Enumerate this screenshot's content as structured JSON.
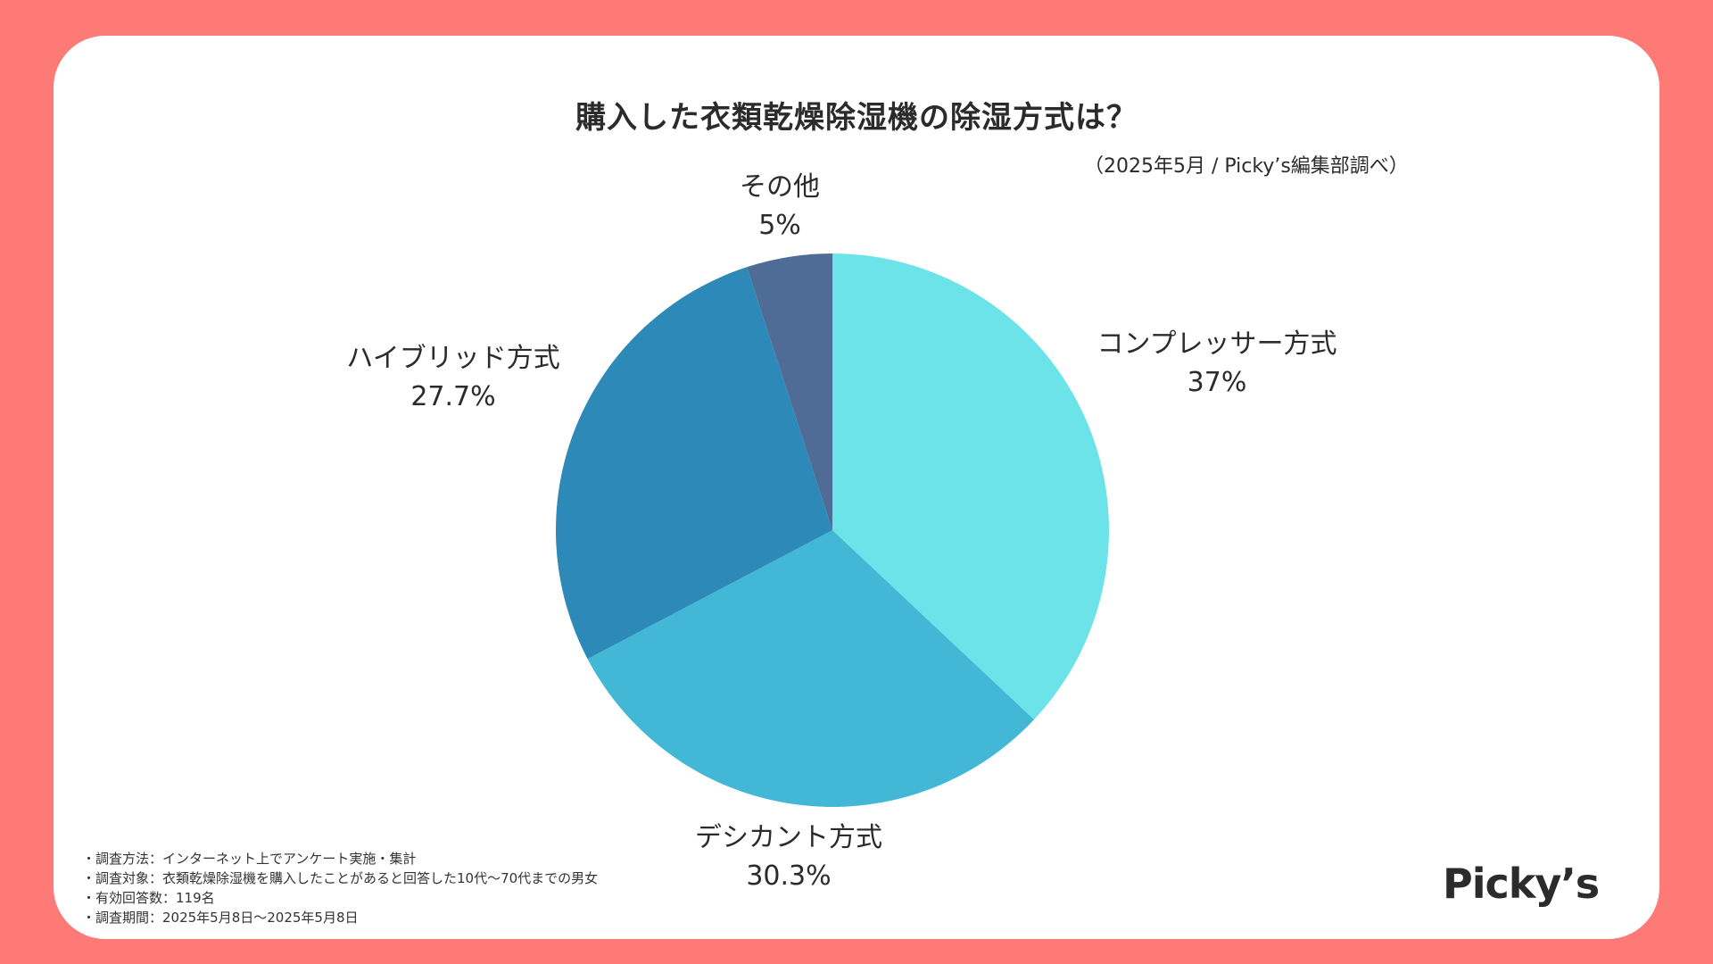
{
  "header": {
    "title": "購入した衣類乾燥除湿機の除湿方式は？",
    "source": "（2025年5月 / Picky’s編集部調べ）"
  },
  "chart_data": {
    "type": "pie",
    "title": "購入した衣類乾燥除湿機の除湿方式は？",
    "slices": [
      {
        "label": "コンプレッサー方式",
        "value": 37,
        "display": "37%",
        "color": "#6ce3e8"
      },
      {
        "label": "デシカント方式",
        "value": 30.3,
        "display": "30.3%",
        "color": "#42b7d6"
      },
      {
        "label": "ハイブリッド方式",
        "value": 27.7,
        "display": "27.7%",
        "color": "#2d8ab8"
      },
      {
        "label": "その他",
        "value": 5,
        "display": "5%",
        "color": "#4e6c96"
      }
    ],
    "start": "12 o'clock",
    "direction": "clockwise"
  },
  "notes": [
    "・調査方法：インターネット上でアンケート実施・集計",
    "・調査対象：衣類乾燥除湿機を購入したことがあると回答した10代〜70代までの男女",
    "・有効回答数：119名",
    "・調査期間：2025年5月8日〜2025年5月8日"
  ],
  "logo": "Picky’s"
}
